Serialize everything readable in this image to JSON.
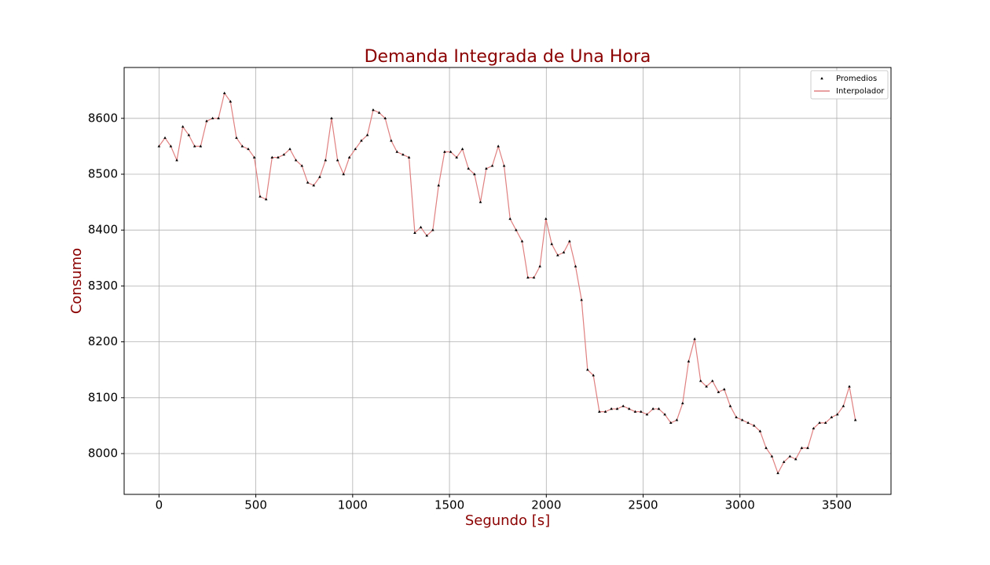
{
  "chart_data": {
    "type": "line",
    "title": "Demanda Integrada de Una Hora",
    "x_label": "Segundo [s]",
    "y_label": "Consumo",
    "x": [
      0,
      31,
      61,
      92,
      123,
      154,
      184,
      215,
      246,
      277,
      307,
      338,
      369,
      400,
      430,
      461,
      492,
      522,
      553,
      584,
      615,
      645,
      676,
      707,
      738,
      768,
      799,
      830,
      860,
      891,
      922,
      953,
      983,
      1014,
      1045,
      1076,
      1106,
      1137,
      1168,
      1199,
      1229,
      1260,
      1291,
      1321,
      1352,
      1383,
      1414,
      1444,
      1475,
      1506,
      1537,
      1567,
      1598,
      1629,
      1660,
      1690,
      1721,
      1752,
      1782,
      1813,
      1844,
      1875,
      1905,
      1936,
      1967,
      1998,
      2028,
      2059,
      2090,
      2120,
      2151,
      2182,
      2213,
      2243,
      2274,
      2305,
      2336,
      2366,
      2397,
      2428,
      2459,
      2489,
      2520,
      2551,
      2581,
      2612,
      2643,
      2674,
      2704,
      2735,
      2766,
      2797,
      2827,
      2858,
      2889,
      2919,
      2950,
      2981,
      3012,
      3042,
      3073,
      3104,
      3135,
      3165,
      3196,
      3227,
      3258,
      3288,
      3319,
      3350,
      3380,
      3411,
      3442,
      3473,
      3503,
      3534,
      3565,
      3596
    ],
    "series": [
      {
        "name": "Promedios",
        "color": "#000000",
        "style": "markers",
        "values": [
          8550,
          8565,
          8550,
          8525,
          8585,
          8570,
          8550,
          8550,
          8595,
          8600,
          8600,
          8645,
          8630,
          8565,
          8550,
          8545,
          8530,
          8460,
          8455,
          8530,
          8530,
          8535,
          8545,
          8525,
          8515,
          8485,
          8480,
          8495,
          8525,
          8600,
          8525,
          8500,
          8530,
          8545,
          8560,
          8570,
          8615,
          8610,
          8600,
          8560,
          8540,
          8535,
          8530,
          8395,
          8405,
          8390,
          8400,
          8480,
          8540,
          8540,
          8530,
          8545,
          8510,
          8500,
          8450,
          8510,
          8515,
          8550,
          8515,
          8420,
          8400,
          8380,
          8315,
          8315,
          8335,
          8420,
          8375,
          8355,
          8360,
          8380,
          8335,
          8275,
          8150,
          8140,
          8075,
          8075,
          8080,
          8080,
          8085,
          8080,
          8075,
          8075,
          8070,
          8080,
          8080,
          8070,
          8055,
          8060,
          8090,
          8165,
          8205,
          8130,
          8120,
          8130,
          8110,
          8115,
          8085,
          8065,
          8060,
          8055,
          8050,
          8040,
          8010,
          7995,
          7965,
          7985,
          7995,
          7990,
          8010,
          8010,
          8045,
          8055,
          8055,
          8065,
          8070,
          8085,
          8120,
          8060
        ]
      },
      {
        "name": "Interpolador",
        "color": "#e08080",
        "style": "line",
        "values": [
          8550,
          8565,
          8550,
          8525,
          8585,
          8570,
          8550,
          8550,
          8595,
          8600,
          8600,
          8645,
          8630,
          8565,
          8550,
          8545,
          8530,
          8460,
          8455,
          8530,
          8530,
          8535,
          8545,
          8525,
          8515,
          8485,
          8480,
          8495,
          8525,
          8600,
          8525,
          8500,
          8530,
          8545,
          8560,
          8570,
          8615,
          8610,
          8600,
          8560,
          8540,
          8535,
          8530,
          8395,
          8405,
          8390,
          8400,
          8480,
          8540,
          8540,
          8530,
          8545,
          8510,
          8500,
          8450,
          8510,
          8515,
          8550,
          8515,
          8420,
          8400,
          8380,
          8315,
          8315,
          8335,
          8420,
          8375,
          8355,
          8360,
          8380,
          8335,
          8275,
          8150,
          8140,
          8075,
          8075,
          8080,
          8080,
          8085,
          8080,
          8075,
          8075,
          8070,
          8080,
          8080,
          8070,
          8055,
          8060,
          8090,
          8165,
          8205,
          8130,
          8120,
          8130,
          8110,
          8115,
          8085,
          8065,
          8060,
          8055,
          8050,
          8040,
          8010,
          7995,
          7965,
          7985,
          7995,
          7990,
          8010,
          8010,
          8045,
          8055,
          8055,
          8065,
          8070,
          8085,
          8120,
          8060
        ]
      }
    ],
    "xlim": [
      -180,
      3780
    ],
    "ylim": [
      7927,
      8691
    ],
    "xticks": [
      0,
      500,
      1000,
      1500,
      2000,
      2500,
      3000,
      3500
    ],
    "yticks": [
      8000,
      8100,
      8200,
      8300,
      8400,
      8500,
      8600
    ],
    "grid": true,
    "legend": "upper right"
  }
}
